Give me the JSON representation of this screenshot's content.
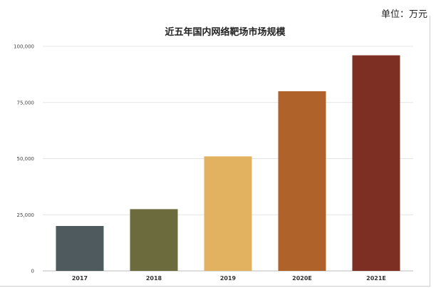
{
  "unit_note": "单位：万元",
  "chart_data": {
    "type": "bar",
    "title": "近五年国内网络靶场市场规模",
    "xlabel": "",
    "ylabel": "",
    "categories": [
      "2017",
      "2018",
      "2019",
      "2020E",
      "2021E"
    ],
    "values": [
      20000,
      27500,
      51000,
      80000,
      96000
    ],
    "ylim": [
      0,
      100000
    ],
    "yticks": [
      0,
      25000,
      50000,
      75000,
      100000
    ],
    "ytick_labels": [
      "0",
      "25,000",
      "50,000",
      "75,000",
      "100,000"
    ],
    "grid": true,
    "legend": "none",
    "colors": [
      "#4f5a5f",
      "#6b6b3e",
      "#e3b261",
      "#b0622b",
      "#7c2f22"
    ]
  }
}
